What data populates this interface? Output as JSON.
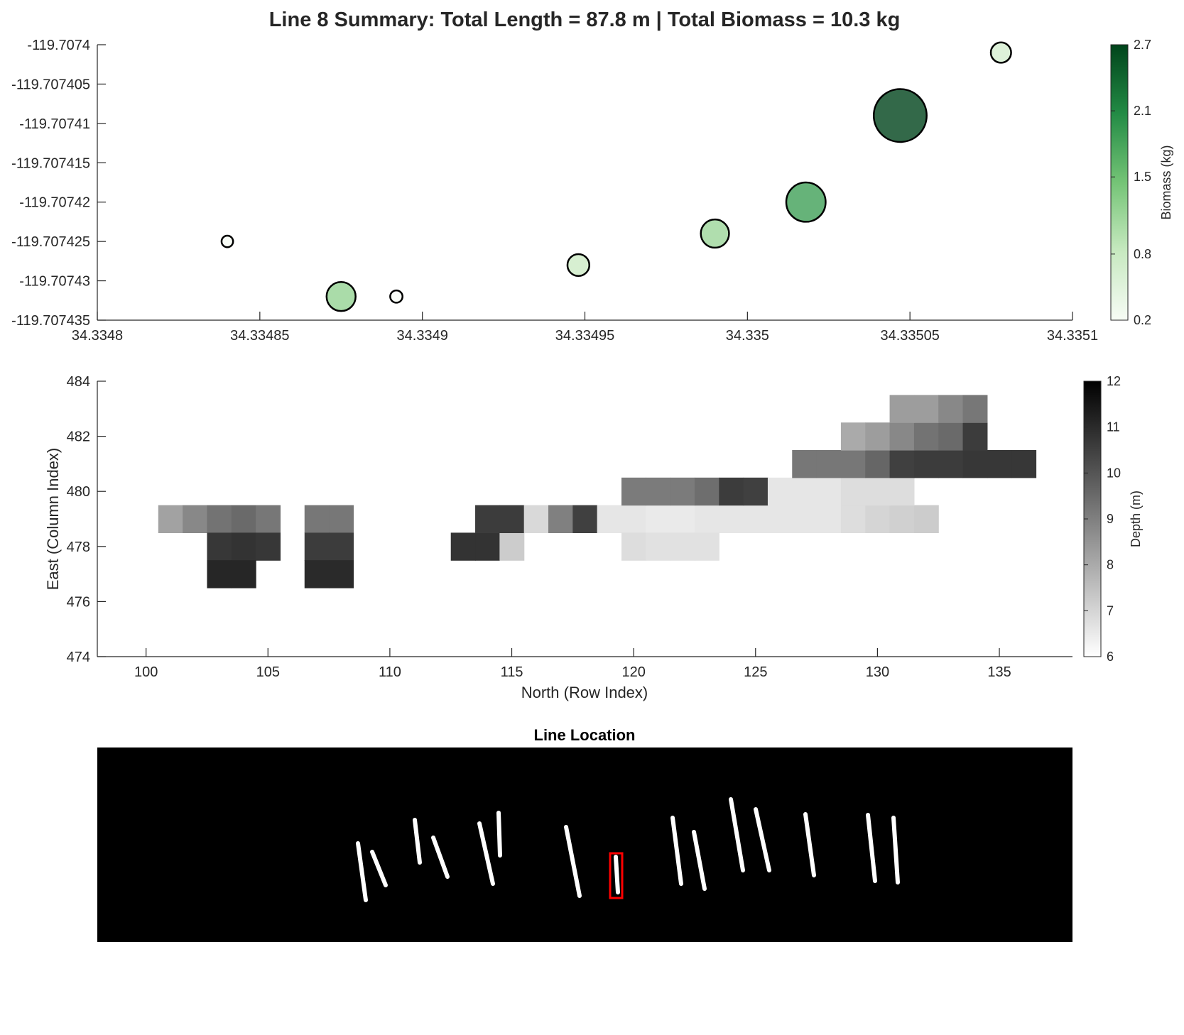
{
  "figure_title": "Line 8 Summary: Total Length = 87.8 m | Total Biomass = 10.3 kg",
  "chart_data": [
    {
      "type": "scatter",
      "xlim": [
        34.3348,
        34.3351
      ],
      "ylim": [
        -119.707435,
        -119.7074
      ],
      "x_ticks": [
        "34.3348",
        "34.33485",
        "34.3349",
        "34.33495",
        "34.335",
        "34.33505",
        "34.3351"
      ],
      "x_tick_values": [
        34.3348,
        34.33485,
        34.3349,
        34.33495,
        34.335,
        34.33505,
        34.3351
      ],
      "y_ticks": [
        "-119.7074",
        "-119.707405",
        "-119.70741",
        "-119.707415",
        "-119.70742",
        "-119.707425",
        "-119.70743",
        "-119.707435"
      ],
      "y_tick_values": [
        -119.7074,
        -119.707405,
        -119.70741,
        -119.707415,
        -119.70742,
        -119.707425,
        -119.70743,
        -119.707435
      ],
      "grid": false,
      "points": [
        {
          "x": 34.33484,
          "y": -119.707425,
          "biomass": 0.1
        },
        {
          "x": 34.334875,
          "y": -119.707432,
          "biomass": 1.2
        },
        {
          "x": 34.334892,
          "y": -119.707432,
          "biomass": 0.15
        },
        {
          "x": 34.334948,
          "y": -119.707428,
          "biomass": 0.75
        },
        {
          "x": 34.33499,
          "y": -119.707424,
          "biomass": 1.15
        },
        {
          "x": 34.335018,
          "y": -119.70742,
          "biomass": 1.85
        },
        {
          "x": 34.335047,
          "y": -119.707409,
          "biomass": 2.7
        },
        {
          "x": 34.335078,
          "y": -119.707401,
          "biomass": 0.65
        }
      ],
      "colorbar": {
        "label": "Biomass (kg)",
        "range": [
          0.2,
          2.7
        ],
        "ticks": [
          "0.2",
          "0.8",
          "1.5",
          "2.1",
          "2.7"
        ],
        "tick_values": [
          0.2,
          0.8,
          1.5,
          2.1,
          2.7
        ],
        "colors": [
          "#f7fcf5",
          "#c7e9c0",
          "#74c476",
          "#238b45",
          "#00441b"
        ]
      }
    },
    {
      "type": "heatmap",
      "xlabel": "North (Row Index)",
      "ylabel": "East (Column Index)",
      "xlim": [
        98,
        138
      ],
      "ylim": [
        474,
        484
      ],
      "x_ticks": [
        "100",
        "105",
        "110",
        "115",
        "120",
        "125",
        "130",
        "135"
      ],
      "x_tick_values": [
        100,
        105,
        110,
        115,
        120,
        125,
        130,
        135
      ],
      "y_ticks": [
        "474",
        "476",
        "478",
        "480",
        "482",
        "484"
      ],
      "y_tick_values": [
        474,
        476,
        478,
        480,
        482,
        484
      ],
      "grid": false,
      "cells": [
        {
          "n": 101,
          "e": 479,
          "depth": 8.2
        },
        {
          "n": 102,
          "e": 479,
          "depth": 8.8
        },
        {
          "n": 103,
          "e": 479,
          "depth": 9.3
        },
        {
          "n": 104,
          "e": 479,
          "depth": 9.5
        },
        {
          "n": 105,
          "e": 479,
          "depth": 9.2
        },
        {
          "n": 103,
          "e": 478,
          "depth": 10.7
        },
        {
          "n": 104,
          "e": 478,
          "depth": 10.8
        },
        {
          "n": 105,
          "e": 478,
          "depth": 10.7
        },
        {
          "n": 103,
          "e": 477,
          "depth": 11.1
        },
        {
          "n": 104,
          "e": 477,
          "depth": 11.1
        },
        {
          "n": 107,
          "e": 479,
          "depth": 9.2
        },
        {
          "n": 108,
          "e": 479,
          "depth": 9.2
        },
        {
          "n": 107,
          "e": 478,
          "depth": 10.6
        },
        {
          "n": 108,
          "e": 478,
          "depth": 10.6
        },
        {
          "n": 107,
          "e": 477,
          "depth": 11.0
        },
        {
          "n": 108,
          "e": 477,
          "depth": 11.0
        },
        {
          "n": 113,
          "e": 478,
          "depth": 10.8
        },
        {
          "n": 114,
          "e": 478,
          "depth": 10.8
        },
        {
          "n": 115,
          "e": 478,
          "depth": 7.2
        },
        {
          "n": 114,
          "e": 479,
          "depth": 10.6
        },
        {
          "n": 115,
          "e": 479,
          "depth": 10.6
        },
        {
          "n": 116,
          "e": 479,
          "depth": 6.9
        },
        {
          "n": 117,
          "e": 479,
          "depth": 9.0
        },
        {
          "n": 118,
          "e": 479,
          "depth": 10.5
        },
        {
          "n": 119,
          "e": 479,
          "depth": 6.6
        },
        {
          "n": 120,
          "e": 479,
          "depth": 6.6
        },
        {
          "n": 121,
          "e": 479,
          "depth": 6.5
        },
        {
          "n": 122,
          "e": 479,
          "depth": 6.5
        },
        {
          "n": 123,
          "e": 479,
          "depth": 6.6
        },
        {
          "n": 124,
          "e": 479,
          "depth": 6.6
        },
        {
          "n": 125,
          "e": 479,
          "depth": 6.6
        },
        {
          "n": 126,
          "e": 479,
          "depth": 6.6
        },
        {
          "n": 127,
          "e": 479,
          "depth": 6.6
        },
        {
          "n": 128,
          "e": 479,
          "depth": 6.6
        },
        {
          "n": 129,
          "e": 479,
          "depth": 6.8
        },
        {
          "n": 130,
          "e": 479,
          "depth": 7.0
        },
        {
          "n": 131,
          "e": 479,
          "depth": 7.1
        },
        {
          "n": 132,
          "e": 479,
          "depth": 7.2
        },
        {
          "n": 120,
          "e": 478,
          "depth": 6.8
        },
        {
          "n": 121,
          "e": 478,
          "depth": 6.7
        },
        {
          "n": 122,
          "e": 478,
          "depth": 6.7
        },
        {
          "n": 123,
          "e": 478,
          "depth": 6.7
        },
        {
          "n": 120,
          "e": 480,
          "depth": 9.1
        },
        {
          "n": 121,
          "e": 480,
          "depth": 9.1
        },
        {
          "n": 122,
          "e": 480,
          "depth": 9.1
        },
        {
          "n": 123,
          "e": 480,
          "depth": 9.4
        },
        {
          "n": 124,
          "e": 480,
          "depth": 10.6
        },
        {
          "n": 125,
          "e": 480,
          "depth": 10.5
        },
        {
          "n": 126,
          "e": 480,
          "depth": 6.6
        },
        {
          "n": 127,
          "e": 480,
          "depth": 6.6
        },
        {
          "n": 128,
          "e": 480,
          "depth": 6.6
        },
        {
          "n": 129,
          "e": 480,
          "depth": 6.8
        },
        {
          "n": 130,
          "e": 480,
          "depth": 6.8
        },
        {
          "n": 131,
          "e": 480,
          "depth": 6.8
        },
        {
          "n": 127,
          "e": 481,
          "depth": 9.2
        },
        {
          "n": 128,
          "e": 481,
          "depth": 9.2
        },
        {
          "n": 129,
          "e": 481,
          "depth": 9.2
        },
        {
          "n": 130,
          "e": 481,
          "depth": 9.6
        },
        {
          "n": 131,
          "e": 481,
          "depth": 10.5
        },
        {
          "n": 132,
          "e": 481,
          "depth": 10.6
        },
        {
          "n": 133,
          "e": 481,
          "depth": 10.6
        },
        {
          "n": 134,
          "e": 481,
          "depth": 10.7
        },
        {
          "n": 135,
          "e": 481,
          "depth": 10.7
        },
        {
          "n": 136,
          "e": 481,
          "depth": 10.7
        },
        {
          "n": 129,
          "e": 482,
          "depth": 8.0
        },
        {
          "n": 130,
          "e": 482,
          "depth": 8.3
        },
        {
          "n": 131,
          "e": 482,
          "depth": 8.8
        },
        {
          "n": 132,
          "e": 482,
          "depth": 9.3
        },
        {
          "n": 133,
          "e": 482,
          "depth": 9.5
        },
        {
          "n": 134,
          "e": 482,
          "depth": 10.6
        },
        {
          "n": 131,
          "e": 483,
          "depth": 8.3
        },
        {
          "n": 132,
          "e": 483,
          "depth": 8.3
        },
        {
          "n": 133,
          "e": 483,
          "depth": 8.8
        },
        {
          "n": 134,
          "e": 483,
          "depth": 9.2
        }
      ],
      "colorbar": {
        "label": "Depth (m)",
        "range": [
          6,
          12
        ],
        "ticks": [
          "6",
          "7",
          "8",
          "9",
          "10",
          "11",
          "12"
        ],
        "tick_values": [
          6,
          7,
          8,
          9,
          10,
          11,
          12
        ]
      }
    },
    {
      "type": "other",
      "title": "Line Location",
      "background": "#000000",
      "line_color": "#ffffff",
      "highlight_color": "#ff0000",
      "highlighted_line": 8
    }
  ]
}
